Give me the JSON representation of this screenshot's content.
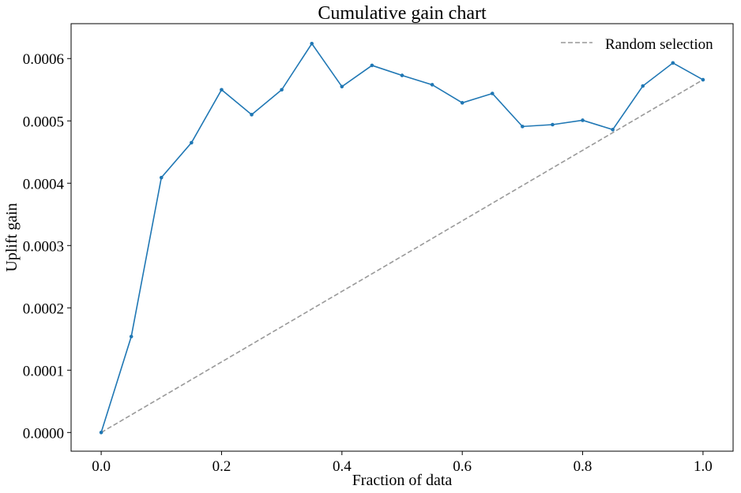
{
  "chart_data": {
    "type": "line",
    "title": "Cumulative gain chart",
    "xlabel": "Fraction of data",
    "ylabel": "Uplift gain",
    "xlim": [
      -0.05,
      1.05
    ],
    "ylim": [
      -3e-05,
      0.000656
    ],
    "x_ticks": [
      0.0,
      0.2,
      0.4,
      0.6,
      0.8,
      1.0
    ],
    "x_tick_labels": [
      "0.0",
      "0.2",
      "0.4",
      "0.6",
      "0.8",
      "1.0"
    ],
    "y_ticks": [
      0.0,
      0.0001,
      0.0002,
      0.0003,
      0.0004,
      0.0005,
      0.0006
    ],
    "y_tick_labels": [
      "0.0000",
      "0.0001",
      "0.0002",
      "0.0003",
      "0.0004",
      "0.0005",
      "0.0006"
    ],
    "grid": false,
    "legend_position": "top-right",
    "series": [
      {
        "color": "#1f77b4",
        "style": "solid-with-dot-markers",
        "x": [
          0.0,
          0.05,
          0.1,
          0.15,
          0.2,
          0.25,
          0.3,
          0.35,
          0.4,
          0.45,
          0.5,
          0.55,
          0.6,
          0.65,
          0.7,
          0.75,
          0.8,
          0.85,
          0.9,
          0.95,
          1.0
        ],
        "y": [
          0.0,
          0.000154,
          0.000409,
          0.000465,
          0.00055,
          0.00051,
          0.00055,
          0.000624,
          0.000555,
          0.000589,
          0.000573,
          0.000558,
          0.000529,
          0.000544,
          0.000491,
          0.000494,
          0.000501,
          0.000486,
          0.000556,
          0.000593,
          0.000566
        ]
      },
      {
        "name": "Random selection",
        "color": "#999999",
        "style": "dashed",
        "x": [
          0.0,
          1.0
        ],
        "y": [
          0.0,
          0.000566
        ]
      }
    ]
  }
}
